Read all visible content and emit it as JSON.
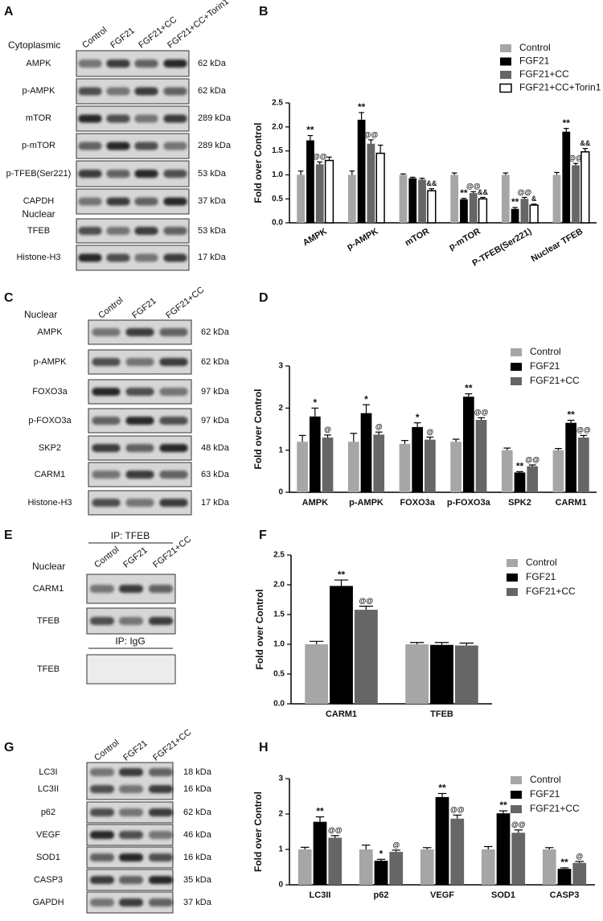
{
  "blots": [
    {
      "panel": "A",
      "header": "Cytoplasmic",
      "section": "Nuclear",
      "lanes": [
        "Control",
        "FGF21",
        "FGF21+CC",
        "FGF21+CC+Torin1"
      ],
      "rows": [
        {
          "label": "AMPK",
          "size": "62 kDa"
        },
        {
          "label": "p-AMPK",
          "size": "62 kDa"
        },
        {
          "label": "mTOR",
          "size": "289 kDa"
        },
        {
          "label": "p-mTOR",
          "size": "289 kDa"
        },
        {
          "label": "p-TFEB(Ser221)",
          "size": "53 kDa"
        },
        {
          "label": "CAPDH",
          "size": "37 kDa"
        },
        {
          "label": "TFEB",
          "size": "53 kDa"
        },
        {
          "label": "Histone-H3",
          "size": "17 kDa"
        }
      ]
    },
    {
      "panel": "C",
      "header": "Nuclear",
      "lanes": [
        "Control",
        "FGF21",
        "FGF21+CC"
      ],
      "rows": [
        {
          "label": "AMPK",
          "size": "62 kDa"
        },
        {
          "label": "p-AMPK",
          "size": "62 kDa"
        },
        {
          "label": "FOXO3a",
          "size": "97 kDa"
        },
        {
          "label": "p-FOXO3a",
          "size": "97 kDa"
        },
        {
          "label": "SKP2",
          "size": "48 kDa"
        },
        {
          "label": "CARM1",
          "size": "63 kDa"
        },
        {
          "label": "Histone-H3",
          "size": "17 kDa"
        }
      ]
    },
    {
      "panel": "E",
      "header": "Nuclear",
      "lanes": [
        "Control",
        "FGF21",
        "FGF21+CC"
      ],
      "groups": [
        {
          "title": "IP: TFEB",
          "rows": [
            {
              "label": "CARM1"
            },
            {
              "label": "TFEB"
            }
          ]
        },
        {
          "title": "IP: IgG",
          "rows": [
            {
              "label": "TFEB"
            }
          ]
        }
      ]
    },
    {
      "panel": "G",
      "lanes": [
        "Control",
        "FGF21",
        "FGF21+CC"
      ],
      "rows": [
        {
          "label": "LC3I",
          "size": "18 kDa"
        },
        {
          "label": "LC3II",
          "size": "16 kDa"
        },
        {
          "label": "p62",
          "size": "62 kDa"
        },
        {
          "label": "VEGF",
          "size": "46 kDa"
        },
        {
          "label": "SOD1",
          "size": "16 kDa"
        },
        {
          "label": "CASP3",
          "size": "35 kDa"
        },
        {
          "label": "GAPDH",
          "size": "37 kDa"
        }
      ]
    }
  ],
  "chart_data": [
    {
      "type": "bar",
      "panel": "B",
      "ylabel": "Fold over Control",
      "xtick_rotation": 30,
      "legend": "upper right",
      "categories": [
        "AMPK",
        "p-AMPK",
        "mTOR",
        "p-mTOR",
        "P-TFEB(Ser221)",
        "Nuclear TFEB"
      ],
      "ylim": [
        0,
        2.5
      ],
      "yticks": [
        {
          "value": 0,
          "label": "0.0"
        },
        0.5,
        {
          "value": 1,
          "label": "1.0"
        },
        1.5,
        {
          "value": 2,
          "label": "2.0"
        },
        2.5
      ],
      "series": [
        {
          "name": "Control",
          "color": "#a6a6a6",
          "values": [
            1.0,
            1.0,
            1.0,
            1.0,
            1.0,
            1.0
          ],
          "errors": [
            0.08,
            0.08,
            0.02,
            0.04,
            0.04,
            0.05
          ],
          "annotations": [
            null,
            null,
            null,
            null,
            null,
            null
          ]
        },
        {
          "name": "FGF21",
          "color": "#000000",
          "values": [
            1.72,
            2.15,
            0.93,
            0.49,
            0.29,
            1.9
          ],
          "errors": [
            0.1,
            0.15,
            0.02,
            0.02,
            0.03,
            0.07
          ],
          "annotations": [
            "**",
            "**",
            null,
            "**",
            "**",
            "**"
          ]
        },
        {
          "name": "FGF21+CC",
          "color": "#666666",
          "values": [
            1.22,
            1.65,
            0.9,
            0.62,
            0.5,
            1.2
          ],
          "errors": [
            0.05,
            0.08,
            0.03,
            0.03,
            0.03,
            0.04
          ],
          "annotations": [
            "@@",
            "@@",
            null,
            "@@",
            "@@",
            "@@"
          ]
        },
        {
          "name": "FGF21+CC+Torin1",
          "color": "#ffffff",
          "edgecolor": "#000000",
          "values": [
            1.3,
            1.45,
            0.67,
            0.5,
            0.37,
            1.48
          ],
          "errors": [
            0.07,
            0.17,
            0.04,
            0.03,
            0.02,
            0.07
          ],
          "annotations": [
            null,
            null,
            "&&",
            "&&",
            "&",
            "&&"
          ]
        }
      ]
    },
    {
      "type": "bar",
      "panel": "D",
      "ylabel": "Fold over Control",
      "legend": "upper right",
      "categories": [
        "AMPK",
        "p-AMPK",
        "FOXO3a",
        "p-FOXO3a",
        "SPK2",
        "CARM1"
      ],
      "ylim": [
        0,
        3
      ],
      "yticks": [
        0,
        1,
        2,
        3
      ],
      "series": [
        {
          "name": "Control",
          "color": "#a6a6a6",
          "values": [
            1.2,
            1.2,
            1.15,
            1.2,
            1.0,
            1.0
          ],
          "errors": [
            0.15,
            0.2,
            0.08,
            0.06,
            0.05,
            0.04
          ],
          "annotations": [
            null,
            null,
            null,
            null,
            null,
            null
          ]
        },
        {
          "name": "FGF21",
          "color": "#000000",
          "values": [
            1.8,
            1.88,
            1.55,
            2.27,
            0.47,
            1.65
          ],
          "errors": [
            0.2,
            0.2,
            0.1,
            0.07,
            0.02,
            0.06
          ],
          "annotations": [
            "*",
            "*",
            "*",
            "**",
            "**",
            "**"
          ]
        },
        {
          "name": "FGF21+CC",
          "color": "#666666",
          "values": [
            1.3,
            1.37,
            1.25,
            1.72,
            0.62,
            1.3
          ],
          "errors": [
            0.06,
            0.06,
            0.06,
            0.05,
            0.03,
            0.05
          ],
          "annotations": [
            "@",
            "@",
            "@",
            "@@",
            "@@",
            "@@"
          ]
        }
      ]
    },
    {
      "type": "bar",
      "panel": "F",
      "ylabel": "Fold over Control",
      "legend": "upper right",
      "categories": [
        "CARM1",
        "TFEB"
      ],
      "ylim": [
        0,
        2.5
      ],
      "yticks": [
        {
          "value": 0,
          "label": "0.0"
        },
        0.5,
        {
          "value": 1,
          "label": "1.0"
        },
        1.5,
        {
          "value": 2,
          "label": "2.0"
        },
        2.5
      ],
      "series": [
        {
          "name": "Control",
          "color": "#a6a6a6",
          "values": [
            1.0,
            1.0
          ],
          "errors": [
            0.05,
            0.03
          ],
          "annotations": [
            null,
            null
          ]
        },
        {
          "name": "FGF21",
          "color": "#000000",
          "values": [
            1.98,
            0.99
          ],
          "errors": [
            0.1,
            0.04
          ],
          "annotations": [
            "**",
            null
          ]
        },
        {
          "name": "FGF21+CC",
          "color": "#666666",
          "values": [
            1.58,
            0.98
          ],
          "errors": [
            0.06,
            0.04
          ],
          "annotations": [
            "@@",
            null
          ]
        }
      ]
    },
    {
      "type": "bar",
      "panel": "H",
      "ylabel": "Fold over Control",
      "legend": "upper right",
      "categories": [
        "LC3II",
        "p62",
        "VEGF",
        "SOD1",
        "CASP3"
      ],
      "ylim": [
        0,
        3
      ],
      "yticks": [
        0,
        1,
        2,
        3
      ],
      "series": [
        {
          "name": "Control",
          "color": "#a6a6a6",
          "values": [
            1.0,
            1.0,
            1.0,
            1.0,
            1.0
          ],
          "errors": [
            0.06,
            0.12,
            0.05,
            0.08,
            0.05
          ],
          "annotations": [
            null,
            null,
            null,
            null,
            null
          ]
        },
        {
          "name": "FGF21",
          "color": "#000000",
          "values": [
            1.78,
            0.68,
            2.48,
            2.02,
            0.45
          ],
          "errors": [
            0.14,
            0.04,
            0.1,
            0.07,
            0.03
          ],
          "annotations": [
            "**",
            "*",
            "**",
            "**",
            "**"
          ]
        },
        {
          "name": "FGF21+CC",
          "color": "#666666",
          "values": [
            1.33,
            0.93,
            1.87,
            1.47,
            0.62
          ],
          "errors": [
            0.06,
            0.05,
            0.1,
            0.08,
            0.04
          ],
          "annotations": [
            "@@",
            "@",
            "@@",
            "@@",
            "@"
          ]
        }
      ]
    }
  ]
}
